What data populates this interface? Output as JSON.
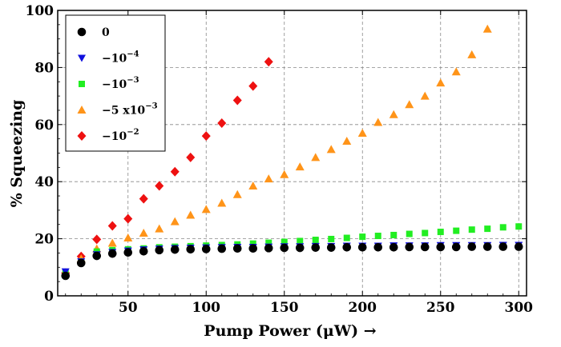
{
  "chart_data": {
    "type": "scatter",
    "xlabel": "Pump Power (μW)  →",
    "ylabel": "% Squeezing",
    "xlim": [
      5,
      305
    ],
    "ylim": [
      0,
      100
    ],
    "xticks": [
      50,
      100,
      150,
      200,
      250,
      300
    ],
    "yticks": [
      0,
      20,
      40,
      60,
      80,
      100
    ],
    "grid": true,
    "legend_position": "top-left",
    "series": [
      {
        "name": "0",
        "legend_text": "0",
        "marker": "circle",
        "color": "#000000",
        "x": [
          10,
          20,
          30,
          40,
          50,
          60,
          70,
          80,
          90,
          100,
          110,
          120,
          130,
          140,
          150,
          160,
          170,
          180,
          190,
          200,
          210,
          220,
          230,
          240,
          250,
          260,
          270,
          280,
          290,
          300
        ],
        "y": [
          7,
          11.5,
          14,
          14.8,
          15.2,
          15.6,
          16,
          16.2,
          16.3,
          16.4,
          16.5,
          16.6,
          16.6,
          16.7,
          16.8,
          16.8,
          16.9,
          16.9,
          17,
          17,
          17,
          17,
          17.1,
          17.1,
          17.1,
          17.1,
          17.2,
          17.2,
          17.2,
          17.2
        ]
      },
      {
        "name": "-10^-4",
        "legend_text": "−10",
        "legend_sup": "−4",
        "marker": "triangle-down",
        "color": "#1010dd",
        "x": [
          10,
          20,
          30,
          40,
          50,
          60,
          70,
          80,
          90,
          100,
          110,
          120,
          130,
          140,
          150,
          160,
          170,
          180,
          190,
          200,
          210,
          220,
          230,
          240,
          250,
          260,
          270,
          280,
          290,
          300
        ],
        "y": [
          8.5,
          12,
          14.5,
          15.3,
          15.8,
          16.2,
          16.5,
          16.7,
          16.8,
          16.9,
          17,
          17.1,
          17.1,
          17.2,
          17.3,
          17.3,
          17.4,
          17.4,
          17.5,
          17.5,
          17.5,
          17.6,
          17.6,
          17.6,
          17.7,
          17.7,
          17.7,
          17.7,
          17.8,
          17.8
        ]
      },
      {
        "name": "-10^-3",
        "legend_text": "−10",
        "legend_sup": "−3",
        "marker": "square",
        "color": "#22ee22",
        "x": [
          10,
          20,
          30,
          40,
          50,
          60,
          70,
          80,
          90,
          100,
          110,
          120,
          130,
          140,
          150,
          160,
          170,
          180,
          190,
          200,
          210,
          220,
          230,
          240,
          250,
          260,
          270,
          280,
          290,
          300
        ],
        "y": [
          8,
          12,
          15.5,
          16,
          16.3,
          16.6,
          17,
          17.2,
          17.4,
          17.6,
          17.8,
          18,
          18.3,
          18.6,
          18.9,
          19.2,
          19.6,
          19.9,
          20.3,
          20.7,
          21,
          21.3,
          21.7,
          22,
          22.4,
          22.8,
          23.2,
          23.5,
          24,
          24.3
        ]
      },
      {
        "name": "-5x10^-3",
        "legend_text": "−5 x10",
        "legend_sup": "−3",
        "marker": "triangle-up",
        "color": "#ff9419",
        "x": [
          10,
          20,
          30,
          40,
          50,
          60,
          70,
          80,
          90,
          100,
          110,
          120,
          130,
          140,
          150,
          160,
          170,
          180,
          190,
          200,
          210,
          220,
          230,
          240,
          250,
          260,
          270,
          280
        ],
        "y": [
          8,
          13,
          16.5,
          18.5,
          20.3,
          22,
          23.5,
          26,
          28.3,
          30.3,
          32.5,
          35.5,
          38.5,
          41,
          42.5,
          45.2,
          48.5,
          51.3,
          54.2,
          57,
          60.8,
          63.5,
          67,
          70,
          74.6,
          78.5,
          84.5,
          93.5
        ]
      },
      {
        "name": "-10^-2",
        "legend_text": "−10",
        "legend_sup": "−2",
        "marker": "diamond",
        "color": "#ee1111",
        "x": [
          10,
          20,
          30,
          40,
          50,
          60,
          70,
          80,
          90,
          100,
          110,
          120,
          130,
          140
        ],
        "y": [
          8,
          13.8,
          19.8,
          24.5,
          27,
          34,
          38.5,
          43.5,
          48.5,
          56,
          60.5,
          68.5,
          73.5,
          82
        ]
      }
    ]
  }
}
